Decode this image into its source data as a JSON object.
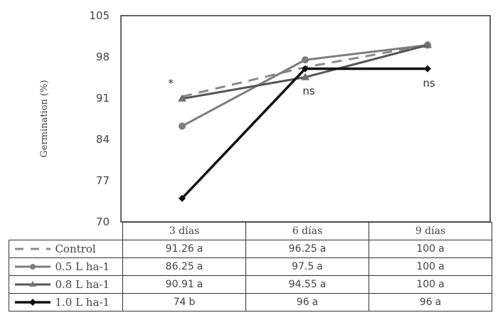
{
  "chart_data": {
    "type": "line",
    "title": "",
    "xlabel": "",
    "ylabel": "Germination (%)",
    "ylim": [
      70,
      105
    ],
    "yticks": [
      70,
      77,
      84,
      91,
      98,
      105
    ],
    "categories": [
      "3 días",
      "6 días",
      "9 días"
    ],
    "series": [
      {
        "name": "Control",
        "values": [
          91.26,
          96.25,
          100
        ],
        "letters": [
          "a",
          "a",
          "a"
        ],
        "color": "#8a8a8a",
        "style": "dashed",
        "marker": "none"
      },
      {
        "name": "0.5 L ha-1",
        "values": [
          86.25,
          97.5,
          100
        ],
        "letters": [
          "a",
          "a",
          "a"
        ],
        "color": "#7d7d7d",
        "style": "solid",
        "marker": "circle"
      },
      {
        "name": "0.8 L ha-1",
        "values": [
          90.91,
          94.55,
          100
        ],
        "letters": [
          "a",
          "a",
          "a"
        ],
        "color": "#555555",
        "style": "solid",
        "marker": "triangle"
      },
      {
        "name": "1.0 L ha-1",
        "values": [
          74,
          96,
          96
        ],
        "letters": [
          "b",
          "a",
          "a"
        ],
        "color": "#111111",
        "style": "solid",
        "marker": "diamond"
      }
    ],
    "annotations": [
      {
        "text": "*",
        "category": "3 días"
      },
      {
        "text": "ns",
        "category": "6 días"
      },
      {
        "text": "ns",
        "category": "9 días"
      }
    ],
    "grid": false,
    "legend_position": "data table below chart"
  },
  "table": {
    "headers": [
      "3 días",
      "6 días",
      "9 días"
    ],
    "rows": [
      {
        "label": "Control",
        "cells": [
          {
            "value": "91.26",
            "letter": "a"
          },
          {
            "value": "96.25",
            "letter": "a"
          },
          {
            "value": "100",
            "letter": "a"
          }
        ]
      },
      {
        "label": "0.5 L ha-1",
        "cells": [
          {
            "value": "86.25",
            "letter": "a"
          },
          {
            "value": "97.5",
            "letter": "a"
          },
          {
            "value": "100",
            "letter": "a"
          }
        ]
      },
      {
        "label": "0.8 L ha-1",
        "cells": [
          {
            "value": "90.91",
            "letter": "a"
          },
          {
            "value": "94.55",
            "letter": "a"
          },
          {
            "value": "100",
            "letter": "a"
          }
        ]
      },
      {
        "label": "1.0 L ha-1",
        "cells": [
          {
            "value": "74",
            "letter": "b"
          },
          {
            "value": "96",
            "letter": "a"
          },
          {
            "value": "96",
            "letter": "a"
          }
        ]
      }
    ]
  }
}
